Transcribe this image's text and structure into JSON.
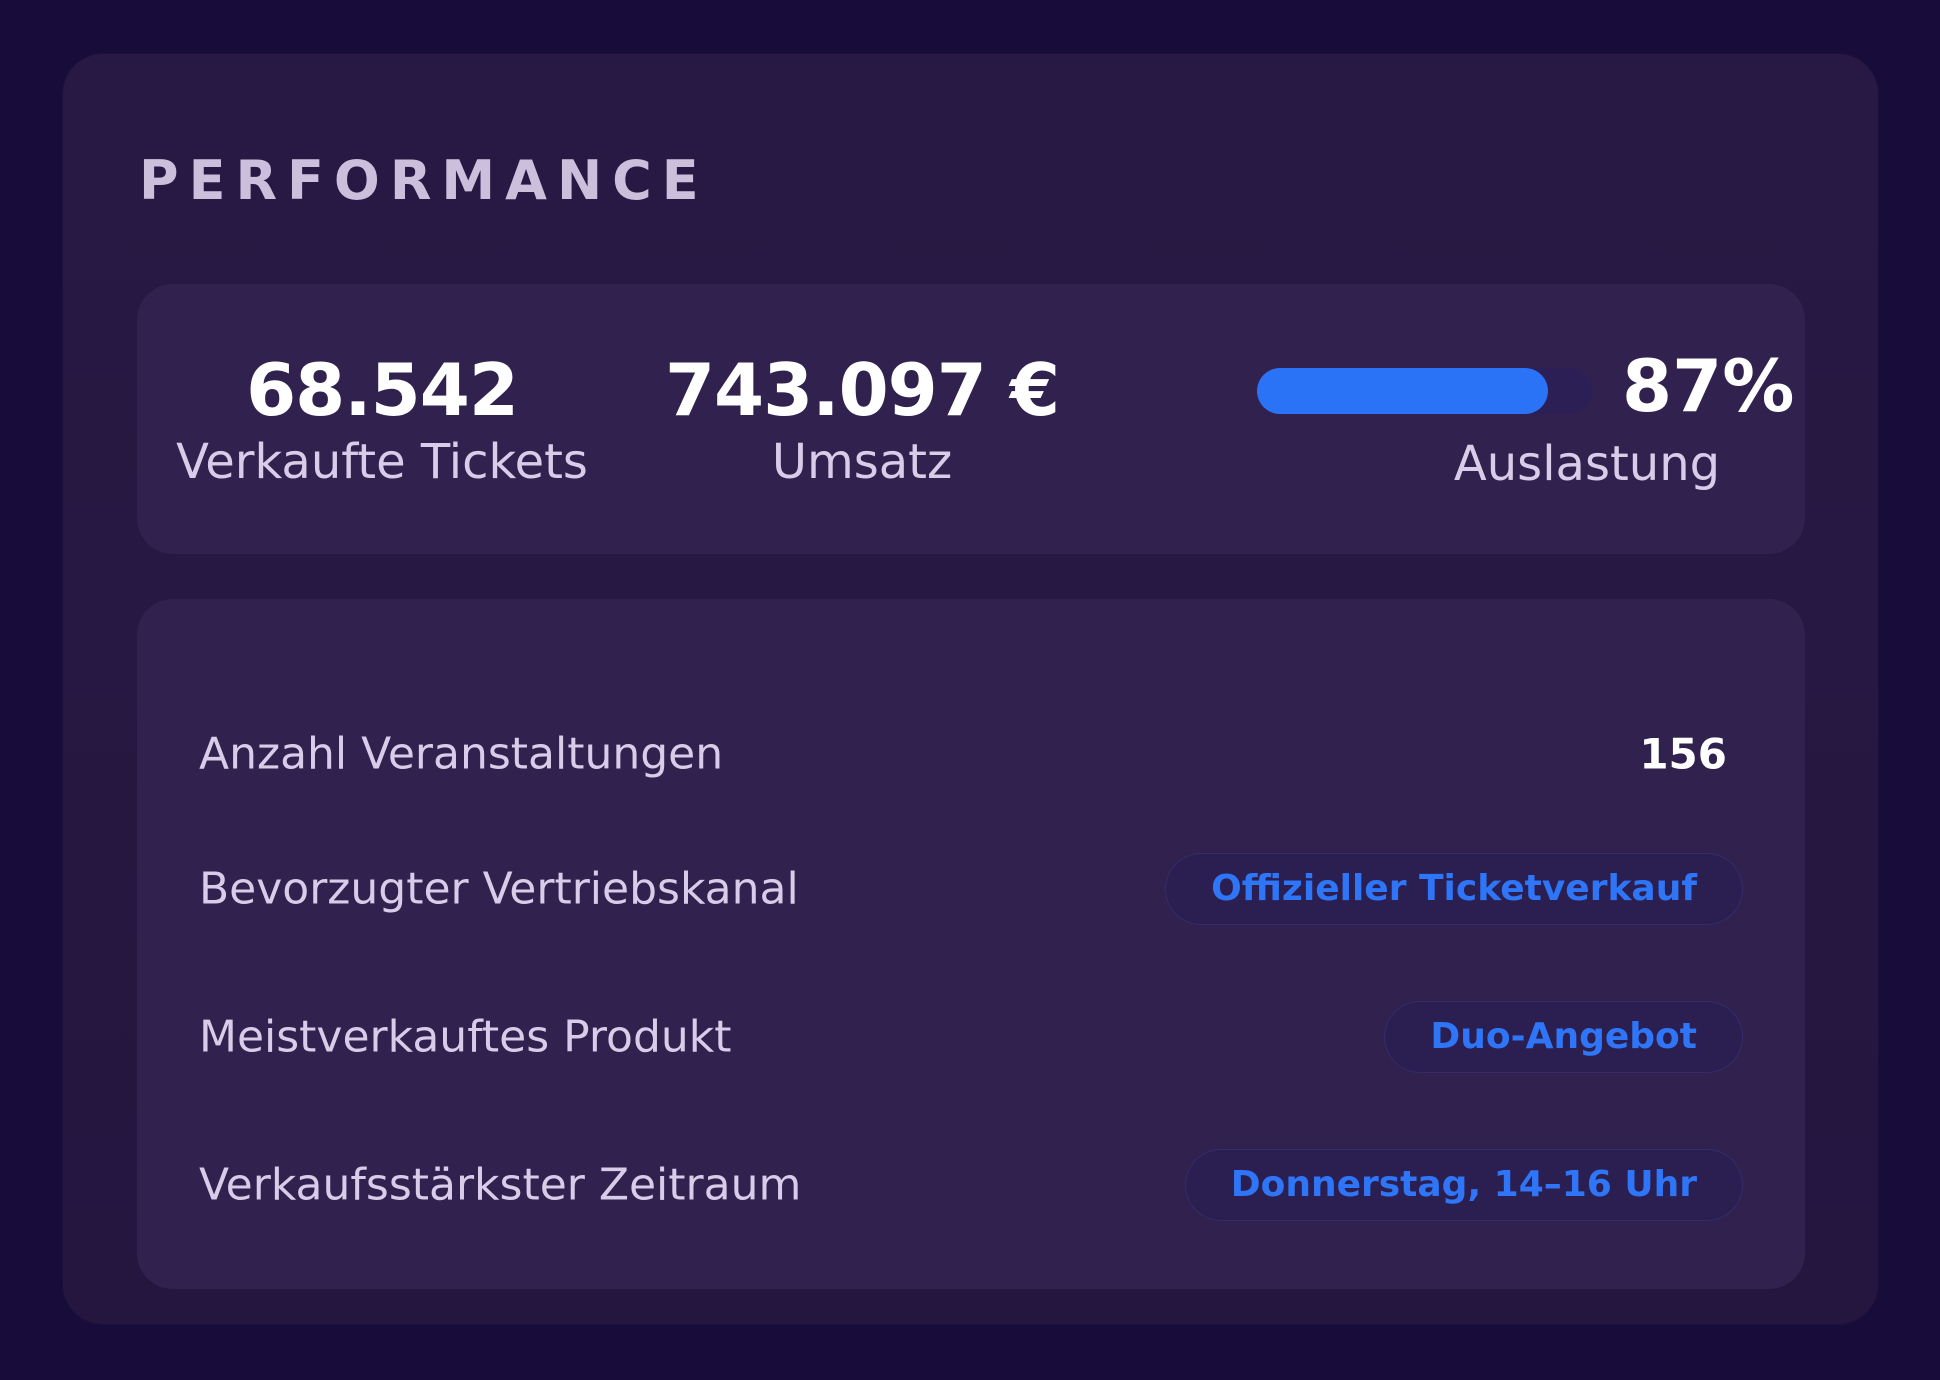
{
  "section": {
    "title": "PERFORMANCE"
  },
  "stats": {
    "tickets": {
      "value": "68.542",
      "label": "Verkaufte Tickets"
    },
    "revenue": {
      "value": "743.097 €",
      "label": "Umsatz"
    },
    "utilization": {
      "value": "87%",
      "label": "Auslastung",
      "fraction": 0.87,
      "bar_color": "#2a72f6"
    }
  },
  "details": {
    "events": {
      "label": "Anzahl Veranstaltungen",
      "value": "156"
    },
    "channel": {
      "label": "Bevorzugter Vertriebskanal",
      "value": "Offizieller Ticketverkauf"
    },
    "product": {
      "label": "Meistverkauftes Produkt",
      "value": "Duo-Angebot"
    },
    "period": {
      "label": "Verkaufsstärkster Zeitraum",
      "value": "Donnerstag, 14–16 Uhr"
    }
  },
  "colors": {
    "background": "#180c3a",
    "card": "#261840",
    "panel": "#30214f",
    "accent": "#2e76f7",
    "label_text": "#d8cde8"
  }
}
